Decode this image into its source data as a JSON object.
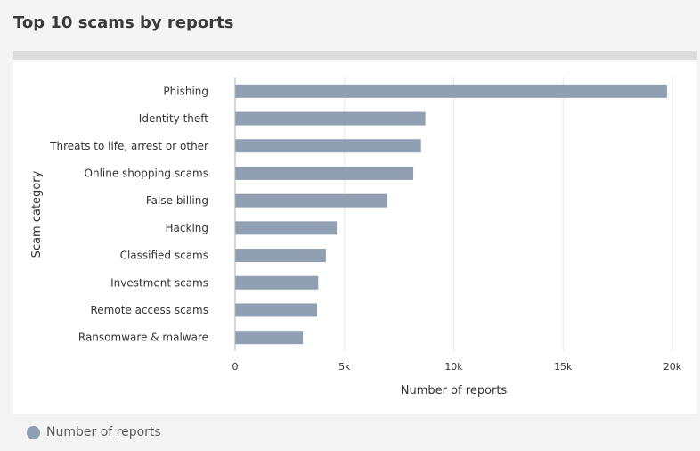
{
  "title": "Top 10 scams by reports",
  "colors": {
    "bar": "#919fb2",
    "grid": "#e6e6e6",
    "axis": "#b0b0b0"
  },
  "legend": {
    "label": "Number of reports",
    "icon": "circle-swatch"
  },
  "chart_data": {
    "type": "bar",
    "orientation": "horizontal",
    "categories": [
      "Phishing",
      "Identity theft",
      "Threats to life, arrest or other",
      "Online shopping scams",
      "False billing",
      "Hacking",
      "Classified scams",
      "Investment scams",
      "Remote access scams",
      "Ransomware & malware"
    ],
    "series": [
      {
        "name": "Number of reports",
        "values": [
          19750,
          8700,
          8500,
          8150,
          6950,
          4650,
          4150,
          3800,
          3750,
          3100
        ]
      }
    ],
    "xlabel": "Number of reports",
    "ylabel": "Scam category",
    "xlim": [
      0,
      20000
    ],
    "xticks": [
      0,
      5000,
      10000,
      15000,
      20000
    ],
    "xtick_labels": [
      "0",
      "5k",
      "10k",
      "15k",
      "20k"
    ],
    "grid": true,
    "legend_position": "bottom-left"
  }
}
